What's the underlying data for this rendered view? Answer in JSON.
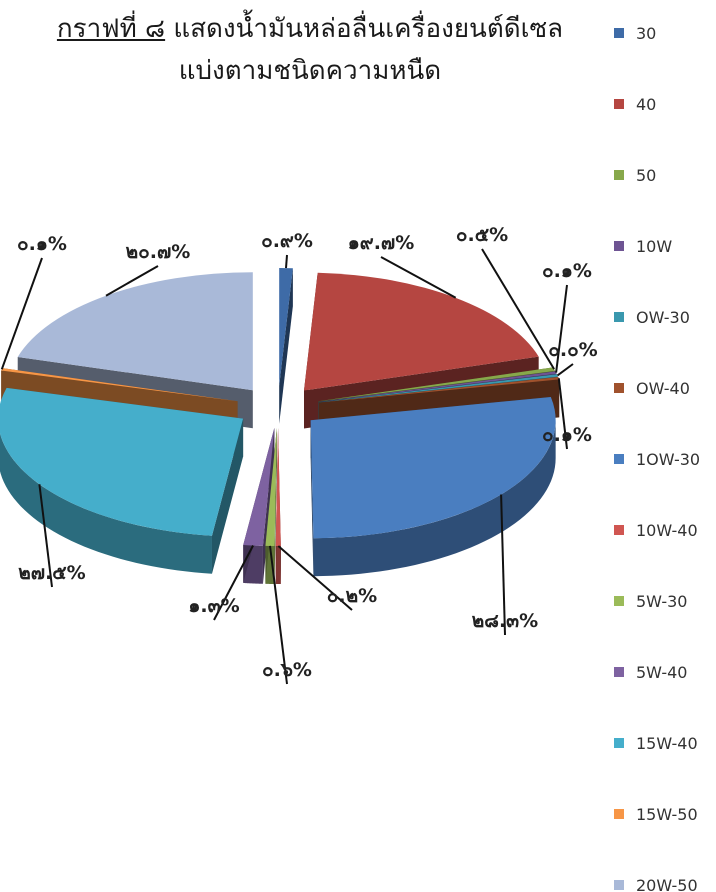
{
  "chart_data": {
    "type": "pie",
    "title_prefix": "กราฟที่ ๘",
    "title_rest": "แสดงน้ำมันหล่อลื่นเครื่องยนต์ดีเซล",
    "title_line2": "แบ่งตามชนิดความหนืด",
    "legend_position": "right",
    "slices": [
      {
        "name": "30",
        "value": 0.9,
        "label": "๐.๙%",
        "color": "#3E6BA7"
      },
      {
        "name": "40",
        "value": 19.7,
        "label": "๑๙.๗%",
        "color": "#B54641"
      },
      {
        "name": "50",
        "value": 0.5,
        "label": "๐.๕%",
        "color": "#87A84B"
      },
      {
        "name": "10W",
        "value": 0.1,
        "label": "๐.๑%",
        "color": "#6E5493"
      },
      {
        "name": "OW-30",
        "value": 0.0,
        "label": "๐.๐%",
        "color": "#3A98AE"
      },
      {
        "name": "OW-40",
        "value": 0.1,
        "label": "๐.๑%",
        "color": "#A0522D"
      },
      {
        "name": "1OW-30",
        "value": 28.3,
        "label": "๒๘.๓%",
        "color": "#4A7EC0"
      },
      {
        "name": "10W-40",
        "value": 0.2,
        "label": "๐.๒%",
        "color": "#D05651"
      },
      {
        "name": "5W-30",
        "value": 0.6,
        "label": "๐.๖%",
        "color": "#9BBB59"
      },
      {
        "name": "5W-40",
        "value": 1.3,
        "label": "๑.๓%",
        "color": "#7E62A1"
      },
      {
        "name": "15W-40",
        "value": 27.5,
        "label": "๒๗.๕%",
        "color": "#45AECB"
      },
      {
        "name": "15W-50",
        "value": 0.1,
        "label": "๐.๑%",
        "color": "#F79646"
      },
      {
        "name": "20W-50",
        "value": 20.7,
        "label": "๒๐.๗%",
        "color": "#A9B9D8"
      }
    ]
  }
}
